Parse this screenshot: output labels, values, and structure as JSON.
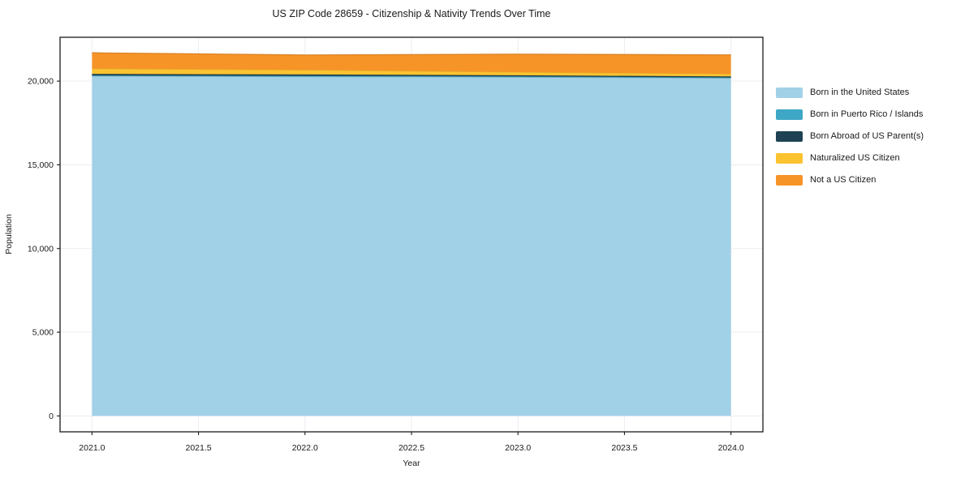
{
  "chart_data": {
    "type": "area",
    "stacked": true,
    "title": "US ZIP Code 28659 - Citizenship & Nativity Trends Over Time",
    "xlabel": "Year",
    "ylabel": "Population",
    "x": [
      2021,
      2022,
      2023,
      2024
    ],
    "series": [
      {
        "name": "Born in the United States",
        "color": "#a1d1e7",
        "values": [
          20300,
          20270,
          20240,
          20180
        ]
      },
      {
        "name": "Born in Puerto Rico / Islands",
        "color": "#3ea7c5",
        "values": [
          40,
          45,
          45,
          40
        ]
      },
      {
        "name": "Born Abroad of US Parent(s)",
        "color": "#1e4253",
        "values": [
          90,
          85,
          65,
          60
        ]
      },
      {
        "name": "Naturalized US Citizen",
        "color": "#fcc331",
        "values": [
          320,
          275,
          195,
          155
        ]
      },
      {
        "name": "Not a US Citizen",
        "color": "#f79428",
        "values": [
          940,
          885,
          1065,
          1130
        ]
      }
    ],
    "xticks": [
      2021.0,
      2021.5,
      2022.0,
      2022.5,
      2023.0,
      2023.5,
      2024.0
    ],
    "xticklabels": [
      "2021.0",
      "2021.5",
      "2022.0",
      "2022.5",
      "2023.0",
      "2023.5",
      "2024.0"
    ],
    "yticks": [
      0,
      5000,
      10000,
      15000,
      20000
    ],
    "yticklabels": [
      "0",
      "5,000",
      "10,000",
      "15,000",
      "20,000"
    ],
    "xlim": [
      2020.85,
      2024.15
    ],
    "ylim": [
      -950,
      22620
    ],
    "grid": true,
    "gridcolor": "#ededf1",
    "axis_color": "#1a1a1a",
    "legend_position": "right"
  }
}
